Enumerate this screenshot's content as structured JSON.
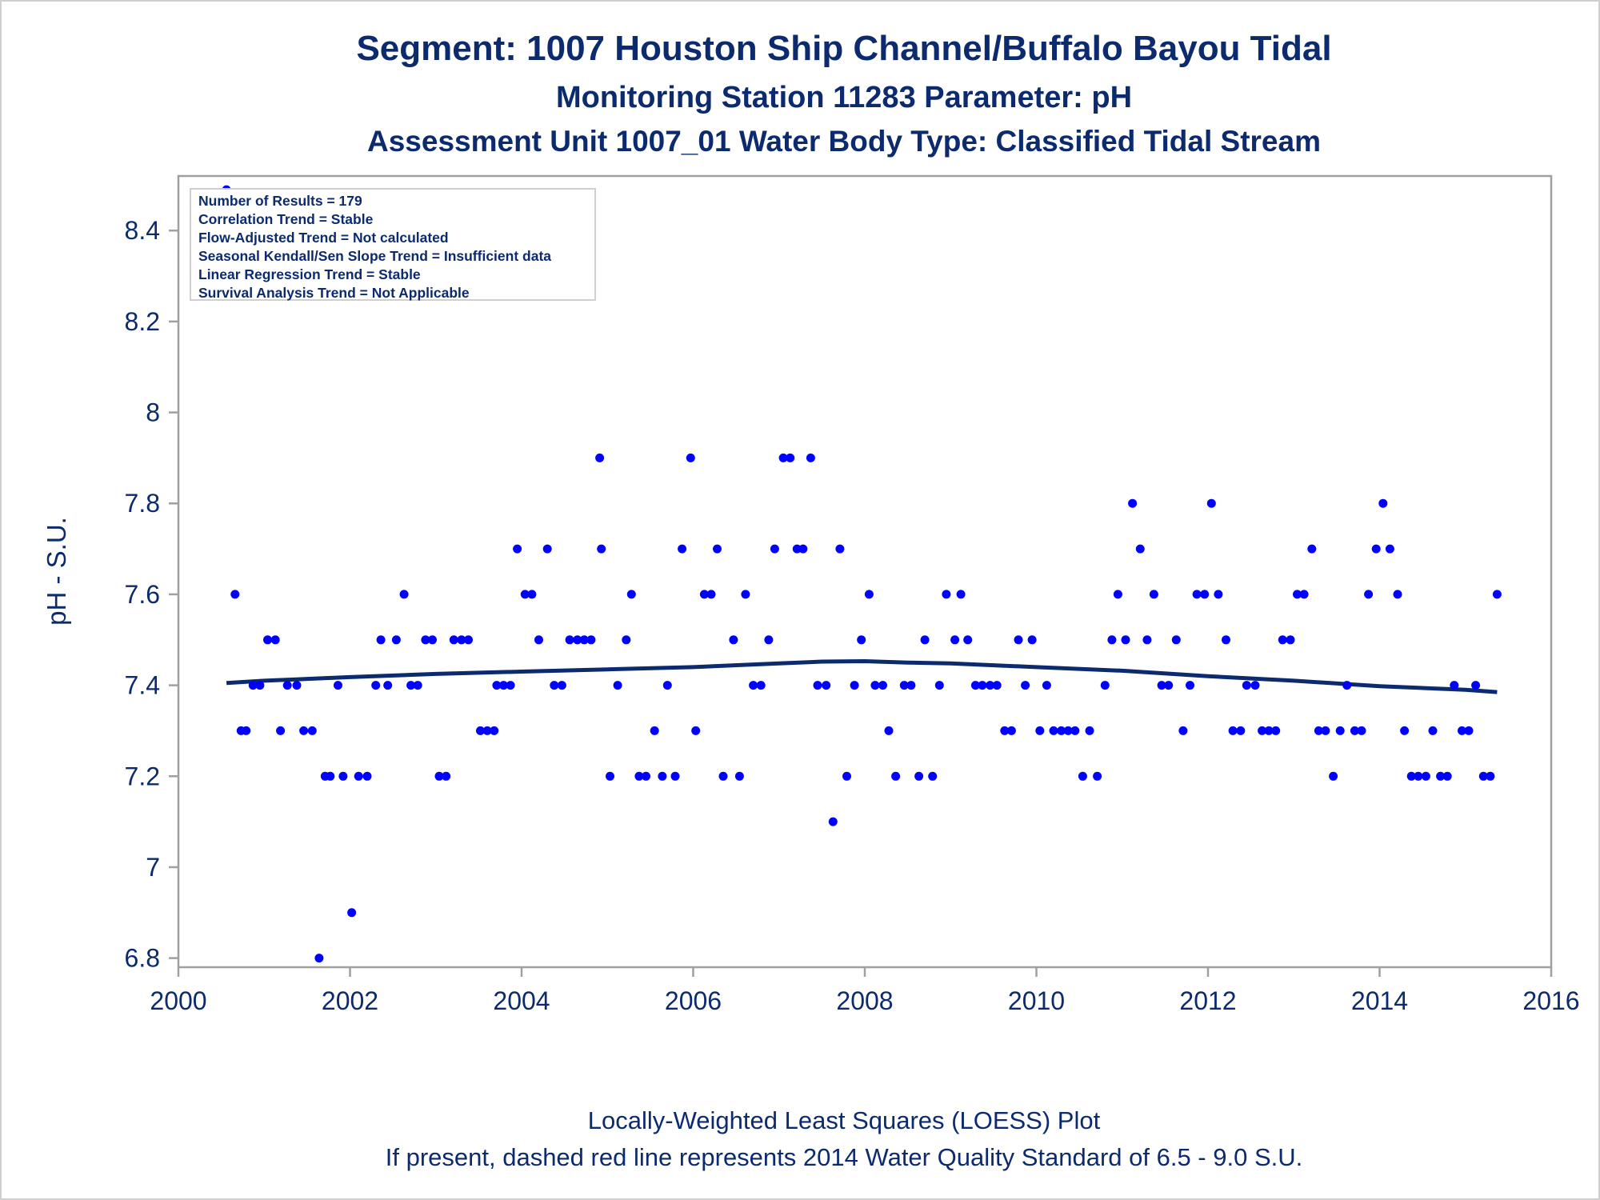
{
  "header": {
    "title": "Segment: 1007  Houston Ship Channel/Buffalo Bayou Tidal",
    "subtitle": "Monitoring Station 11283 Parameter: pH",
    "subtitle2": "Assessment Unit 1007_01   Water Body Type: Classified Tidal Stream"
  },
  "stats_box": {
    "lines": [
      "Number of Results = 179",
      "Correlation Trend = Stable",
      "Flow-Adjusted Trend = Not calculated",
      "Seasonal Kendall/Sen Slope Trend = Insufficient data",
      "Linear Regression Trend = Stable",
      "Survival Analysis Trend = Not Applicable"
    ]
  },
  "footer": {
    "line1": "Locally-Weighted Least Squares (LOESS) Plot",
    "line2": "If present, dashed red line represents 2014 Water Quality Standard of 6.5 - 9.0 S.U."
  },
  "colors": {
    "text": "#0c2a6e",
    "points": "#0000ff",
    "loess": "#0c2a6e",
    "frame": "#a0a0a0"
  },
  "chart_data": {
    "type": "scatter",
    "title": "Segment: 1007  Houston Ship Channel/Buffalo Bayou Tidal",
    "xlabel": "",
    "ylabel": "pH - S.U.",
    "xlim": [
      2000,
      2016
    ],
    "ylim": [
      6.78,
      8.52
    ],
    "xticks": [
      2000,
      2002,
      2004,
      2006,
      2008,
      2010,
      2012,
      2014,
      2016
    ],
    "yticks": [
      6.8,
      7,
      7.2,
      7.4,
      7.6,
      7.8,
      8,
      8.2,
      8.4
    ],
    "ytick_labels": [
      "6.8",
      "7",
      "7.2",
      "7.4",
      "7.6",
      "7.8",
      "8",
      "8.2",
      "8.4"
    ],
    "grid": false,
    "series": [
      {
        "type": "scatter",
        "points": [
          [
            2000.56,
            8.49
          ],
          [
            2000.66,
            7.6
          ],
          [
            2000.73,
            7.3
          ],
          [
            2000.79,
            7.3
          ],
          [
            2000.87,
            7.4
          ],
          [
            2000.95,
            7.4
          ],
          [
            2001.04,
            7.5
          ],
          [
            2001.13,
            7.5
          ],
          [
            2001.19,
            7.3
          ],
          [
            2001.27,
            7.4
          ],
          [
            2001.38,
            7.4
          ],
          [
            2001.46,
            7.3
          ],
          [
            2001.56,
            7.3
          ],
          [
            2001.64,
            6.8
          ],
          [
            2001.71,
            7.2
          ],
          [
            2001.77,
            7.2
          ],
          [
            2001.86,
            7.4
          ],
          [
            2001.92,
            7.2
          ],
          [
            2002.02,
            6.9
          ],
          [
            2002.1,
            7.2
          ],
          [
            2002.2,
            7.2
          ],
          [
            2002.3,
            7.4
          ],
          [
            2002.36,
            7.5
          ],
          [
            2002.44,
            7.4
          ],
          [
            2002.54,
            7.5
          ],
          [
            2002.63,
            7.6
          ],
          [
            2002.71,
            7.4
          ],
          [
            2002.79,
            7.4
          ],
          [
            2002.88,
            7.5
          ],
          [
            2002.96,
            7.5
          ],
          [
            2003.04,
            7.2
          ],
          [
            2003.12,
            7.2
          ],
          [
            2003.21,
            7.5
          ],
          [
            2003.3,
            7.5
          ],
          [
            2003.38,
            7.5
          ],
          [
            2003.52,
            7.3
          ],
          [
            2003.6,
            7.3
          ],
          [
            2003.68,
            7.3
          ],
          [
            2003.71,
            7.4
          ],
          [
            2003.79,
            7.4
          ],
          [
            2003.87,
            7.4
          ],
          [
            2003.95,
            7.7
          ],
          [
            2004.04,
            7.6
          ],
          [
            2004.12,
            7.6
          ],
          [
            2004.2,
            7.5
          ],
          [
            2004.3,
            7.7
          ],
          [
            2004.38,
            7.4
          ],
          [
            2004.47,
            7.4
          ],
          [
            2004.56,
            7.5
          ],
          [
            2004.65,
            7.5
          ],
          [
            2004.73,
            7.5
          ],
          [
            2004.81,
            7.5
          ],
          [
            2004.91,
            7.9
          ],
          [
            2004.93,
            7.7
          ],
          [
            2005.03,
            7.2
          ],
          [
            2005.12,
            7.4
          ],
          [
            2005.22,
            7.5
          ],
          [
            2005.28,
            7.6
          ],
          [
            2005.37,
            7.2
          ],
          [
            2005.45,
            7.2
          ],
          [
            2005.55,
            7.3
          ],
          [
            2005.64,
            7.2
          ],
          [
            2005.7,
            7.4
          ],
          [
            2005.79,
            7.2
          ],
          [
            2005.87,
            7.7
          ],
          [
            2005.97,
            7.9
          ],
          [
            2006.03,
            7.3
          ],
          [
            2006.13,
            7.6
          ],
          [
            2006.21,
            7.6
          ],
          [
            2006.28,
            7.7
          ],
          [
            2006.35,
            7.2
          ],
          [
            2006.47,
            7.5
          ],
          [
            2006.54,
            7.2
          ],
          [
            2006.61,
            7.6
          ],
          [
            2006.7,
            7.4
          ],
          [
            2006.79,
            7.4
          ],
          [
            2006.88,
            7.5
          ],
          [
            2006.95,
            7.7
          ],
          [
            2007.05,
            7.9
          ],
          [
            2007.13,
            7.9
          ],
          [
            2007.21,
            7.7
          ],
          [
            2007.28,
            7.7
          ],
          [
            2007.37,
            7.9
          ],
          [
            2007.45,
            7.4
          ],
          [
            2007.55,
            7.4
          ],
          [
            2007.63,
            7.1
          ],
          [
            2007.71,
            7.7
          ],
          [
            2007.79,
            7.2
          ],
          [
            2007.88,
            7.4
          ],
          [
            2007.96,
            7.5
          ],
          [
            2008.05,
            7.6
          ],
          [
            2008.12,
            7.4
          ],
          [
            2008.21,
            7.4
          ],
          [
            2008.28,
            7.3
          ],
          [
            2008.36,
            7.2
          ],
          [
            2008.46,
            7.4
          ],
          [
            2008.54,
            7.4
          ],
          [
            2008.63,
            7.2
          ],
          [
            2008.7,
            7.5
          ],
          [
            2008.79,
            7.2
          ],
          [
            2008.87,
            7.4
          ],
          [
            2008.95,
            7.6
          ],
          [
            2009.05,
            7.5
          ],
          [
            2009.12,
            7.6
          ],
          [
            2009.2,
            7.5
          ],
          [
            2009.29,
            7.4
          ],
          [
            2009.37,
            7.4
          ],
          [
            2009.46,
            7.4
          ],
          [
            2009.54,
            7.4
          ],
          [
            2009.63,
            7.3
          ],
          [
            2009.71,
            7.3
          ],
          [
            2009.79,
            7.5
          ],
          [
            2009.87,
            7.4
          ],
          [
            2009.95,
            7.5
          ],
          [
            2010.04,
            7.3
          ],
          [
            2010.12,
            7.4
          ],
          [
            2010.2,
            7.3
          ],
          [
            2010.29,
            7.3
          ],
          [
            2010.37,
            7.3
          ],
          [
            2010.45,
            7.3
          ],
          [
            2010.54,
            7.2
          ],
          [
            2010.62,
            7.3
          ],
          [
            2010.71,
            7.2
          ],
          [
            2010.8,
            7.4
          ],
          [
            2010.88,
            7.5
          ],
          [
            2010.95,
            7.6
          ],
          [
            2011.04,
            7.5
          ],
          [
            2011.12,
            7.8
          ],
          [
            2011.21,
            7.7
          ],
          [
            2011.29,
            7.5
          ],
          [
            2011.37,
            7.6
          ],
          [
            2011.46,
            7.4
          ],
          [
            2011.54,
            7.4
          ],
          [
            2011.63,
            7.5
          ],
          [
            2011.71,
            7.3
          ],
          [
            2011.79,
            7.4
          ],
          [
            2011.87,
            7.6
          ],
          [
            2011.96,
            7.6
          ],
          [
            2012.04,
            7.8
          ],
          [
            2012.12,
            7.6
          ],
          [
            2012.21,
            7.5
          ],
          [
            2012.29,
            7.3
          ],
          [
            2012.38,
            7.3
          ],
          [
            2012.45,
            7.4
          ],
          [
            2012.55,
            7.4
          ],
          [
            2012.63,
            7.3
          ],
          [
            2012.71,
            7.3
          ],
          [
            2012.79,
            7.3
          ],
          [
            2012.87,
            7.5
          ],
          [
            2012.96,
            7.5
          ],
          [
            2013.04,
            7.6
          ],
          [
            2013.12,
            7.6
          ],
          [
            2013.21,
            7.7
          ],
          [
            2013.29,
            7.3
          ],
          [
            2013.37,
            7.3
          ],
          [
            2013.46,
            7.2
          ],
          [
            2013.54,
            7.3
          ],
          [
            2013.62,
            7.4
          ],
          [
            2013.71,
            7.3
          ],
          [
            2013.79,
            7.3
          ],
          [
            2013.87,
            7.6
          ],
          [
            2013.96,
            7.7
          ],
          [
            2014.04,
            7.8
          ],
          [
            2014.12,
            7.7
          ],
          [
            2014.21,
            7.6
          ],
          [
            2014.29,
            7.3
          ],
          [
            2014.37,
            7.2
          ],
          [
            2014.45,
            7.2
          ],
          [
            2014.54,
            7.2
          ],
          [
            2014.62,
            7.3
          ],
          [
            2014.71,
            7.2
          ],
          [
            2014.79,
            7.2
          ],
          [
            2014.87,
            7.4
          ],
          [
            2014.96,
            7.3
          ],
          [
            2015.04,
            7.3
          ],
          [
            2015.12,
            7.4
          ],
          [
            2015.21,
            7.2
          ],
          [
            2015.29,
            7.2
          ],
          [
            2015.37,
            7.6
          ]
        ]
      },
      {
        "type": "line",
        "points": [
          [
            2000.56,
            7.405
          ],
          [
            2001.0,
            7.41
          ],
          [
            2002.0,
            7.418
          ],
          [
            2003.0,
            7.425
          ],
          [
            2004.0,
            7.43
          ],
          [
            2005.0,
            7.435
          ],
          [
            2006.0,
            7.44
          ],
          [
            2007.0,
            7.448
          ],
          [
            2007.5,
            7.452
          ],
          [
            2008.0,
            7.453
          ],
          [
            2008.5,
            7.45
          ],
          [
            2009.0,
            7.448
          ],
          [
            2010.0,
            7.44
          ],
          [
            2011.0,
            7.432
          ],
          [
            2012.0,
            7.42
          ],
          [
            2013.0,
            7.41
          ],
          [
            2014.0,
            7.398
          ],
          [
            2015.0,
            7.39
          ],
          [
            2015.37,
            7.385
          ]
        ]
      }
    ]
  }
}
